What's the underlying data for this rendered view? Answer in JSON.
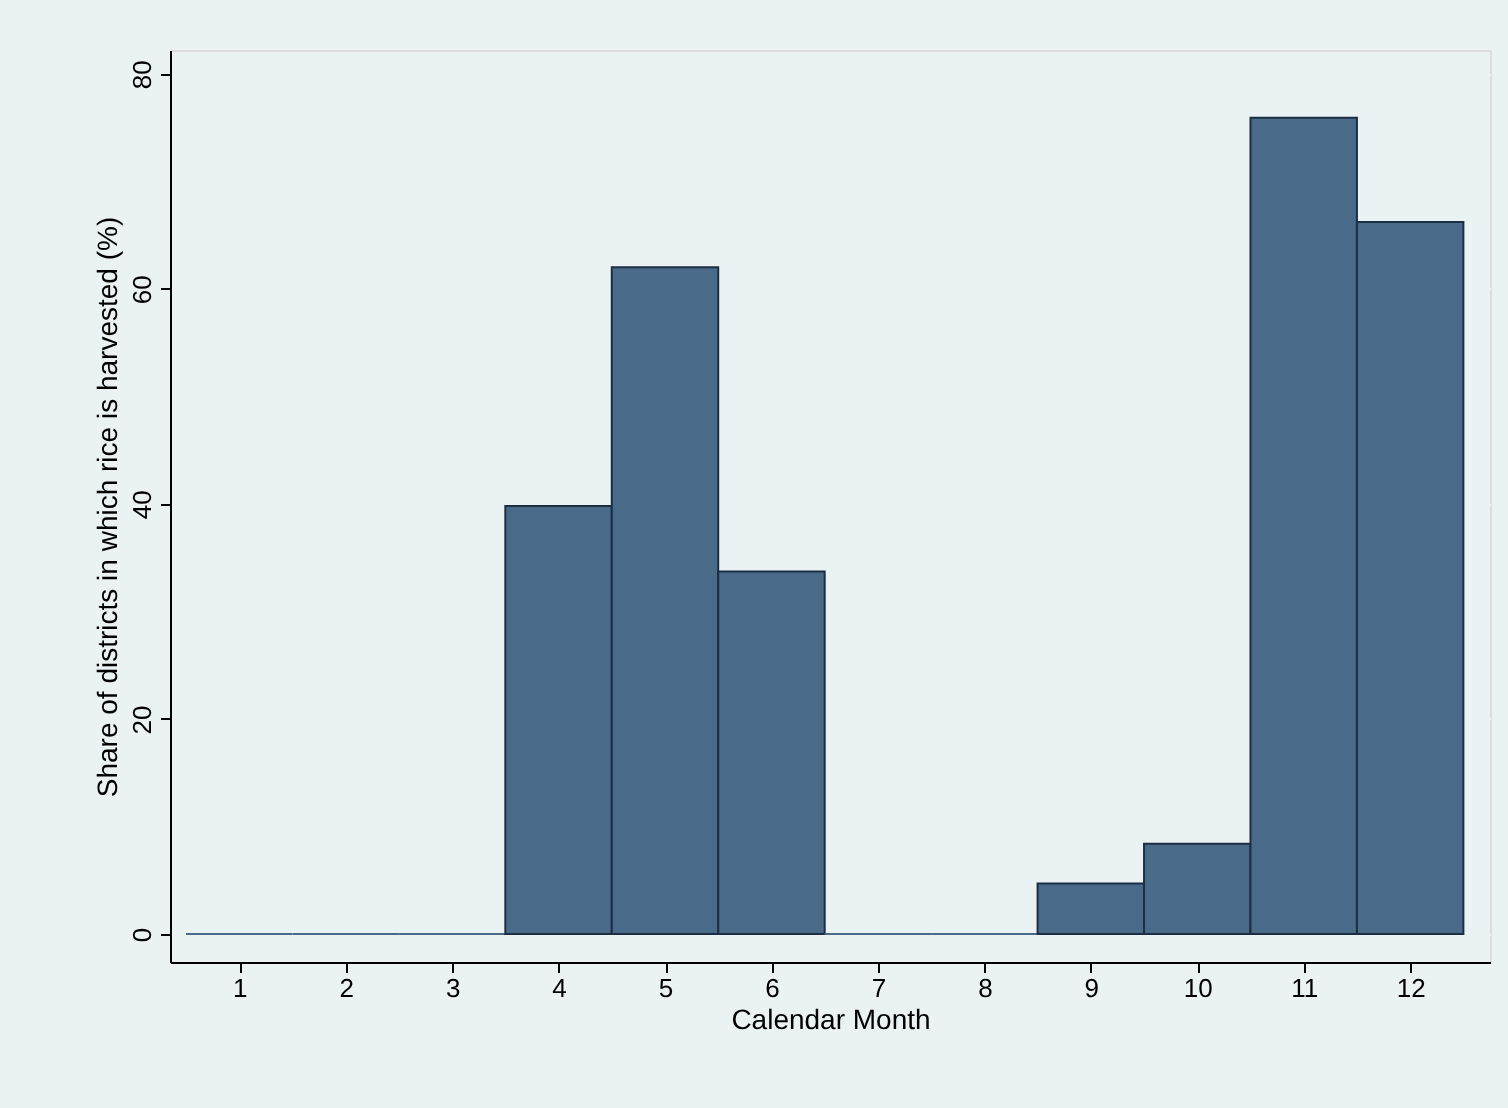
{
  "chart_data": {
    "type": "bar",
    "xlabel": "Calendar Month",
    "ylabel": "Share of districts in which rice is harvested (%)",
    "x": [
      1,
      2,
      3,
      4,
      5,
      6,
      7,
      8,
      9,
      10,
      11,
      12
    ],
    "values": [
      0,
      0,
      0,
      39.8,
      62.0,
      33.7,
      0,
      0,
      4.7,
      8.4,
      75.9,
      66.2
    ],
    "color": "#4a6a8a",
    "xlim": [
      0.35,
      12.75
    ],
    "xticks": [
      1,
      2,
      3,
      4,
      5,
      6,
      7,
      8,
      9,
      10,
      11,
      12
    ],
    "ylim": [
      -2.6,
      82.2
    ],
    "yticks": [
      0,
      20,
      40,
      60,
      80
    ],
    "grid": "y"
  }
}
